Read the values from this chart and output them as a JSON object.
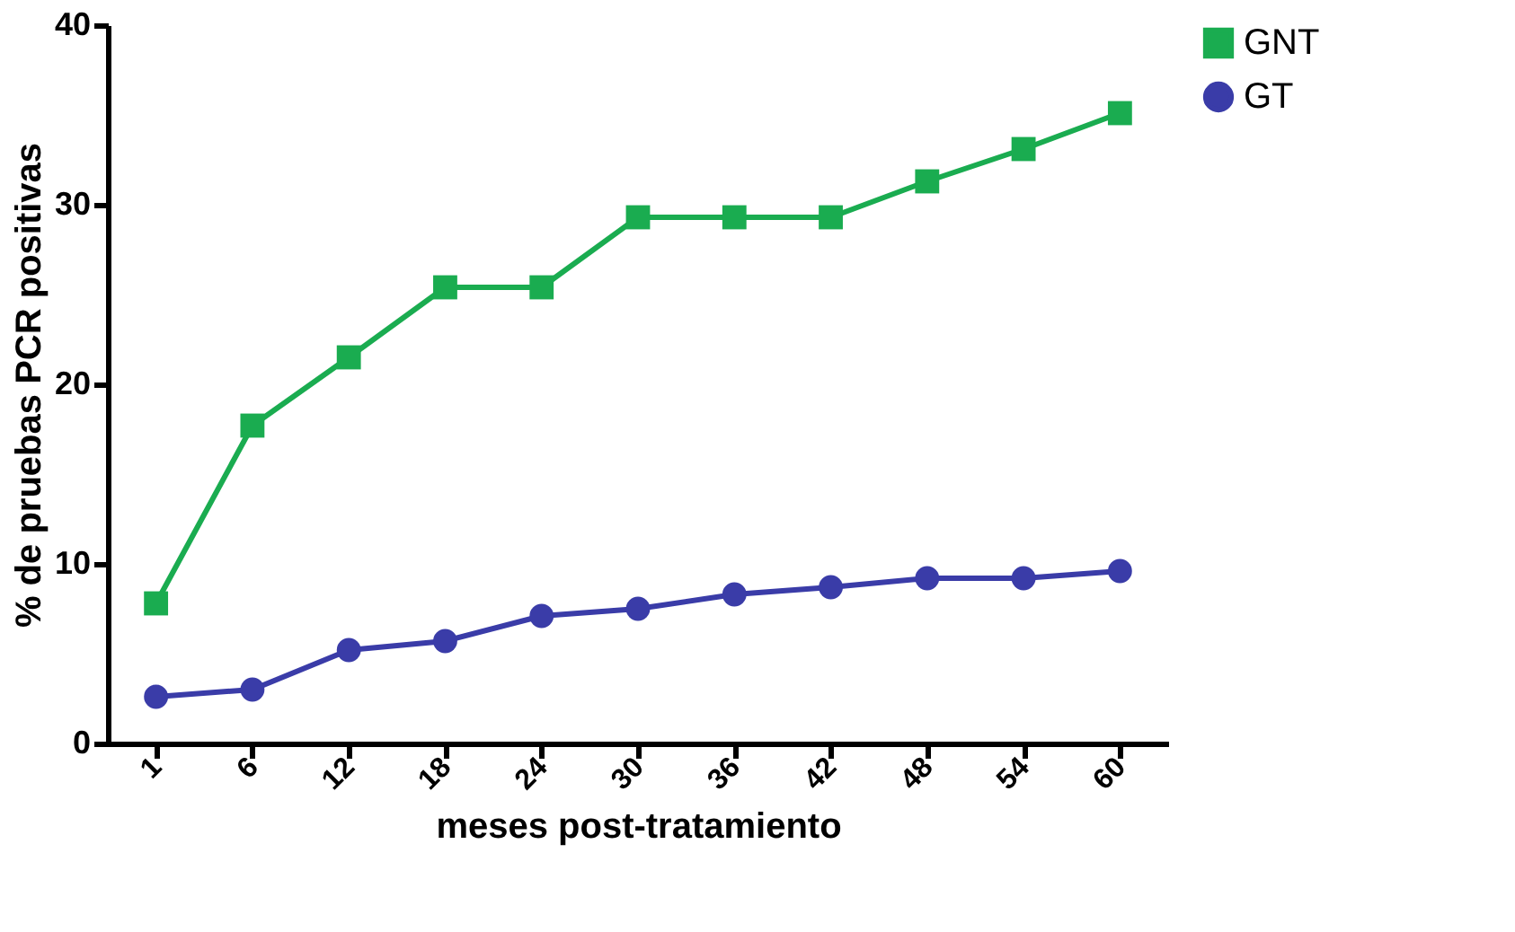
{
  "chart_data": {
    "type": "line",
    "xlabel": "meses post-tratamiento",
    "ylabel": "% de pruebas PCR positivas",
    "categories": [
      "1",
      "6",
      "12",
      "18",
      "24",
      "30",
      "36",
      "42",
      "48",
      "54",
      "60"
    ],
    "ylim": [
      0,
      40
    ],
    "yticks": [
      0,
      10,
      20,
      30,
      40
    ],
    "grid": false,
    "legend": "right",
    "line_style": "solid",
    "series": [
      {
        "name": "GNT",
        "color": "#1aac50",
        "marker": "square",
        "values": [
          7.8,
          17.7,
          21.5,
          25.4,
          25.4,
          29.3,
          29.3,
          29.3,
          31.3,
          33.1,
          35.1
        ]
      },
      {
        "name": "GT",
        "color": "#3a3ca8",
        "marker": "circle",
        "values": [
          2.6,
          3.0,
          5.2,
          5.7,
          7.1,
          7.5,
          8.3,
          8.7,
          9.2,
          9.2,
          9.6
        ]
      }
    ]
  }
}
